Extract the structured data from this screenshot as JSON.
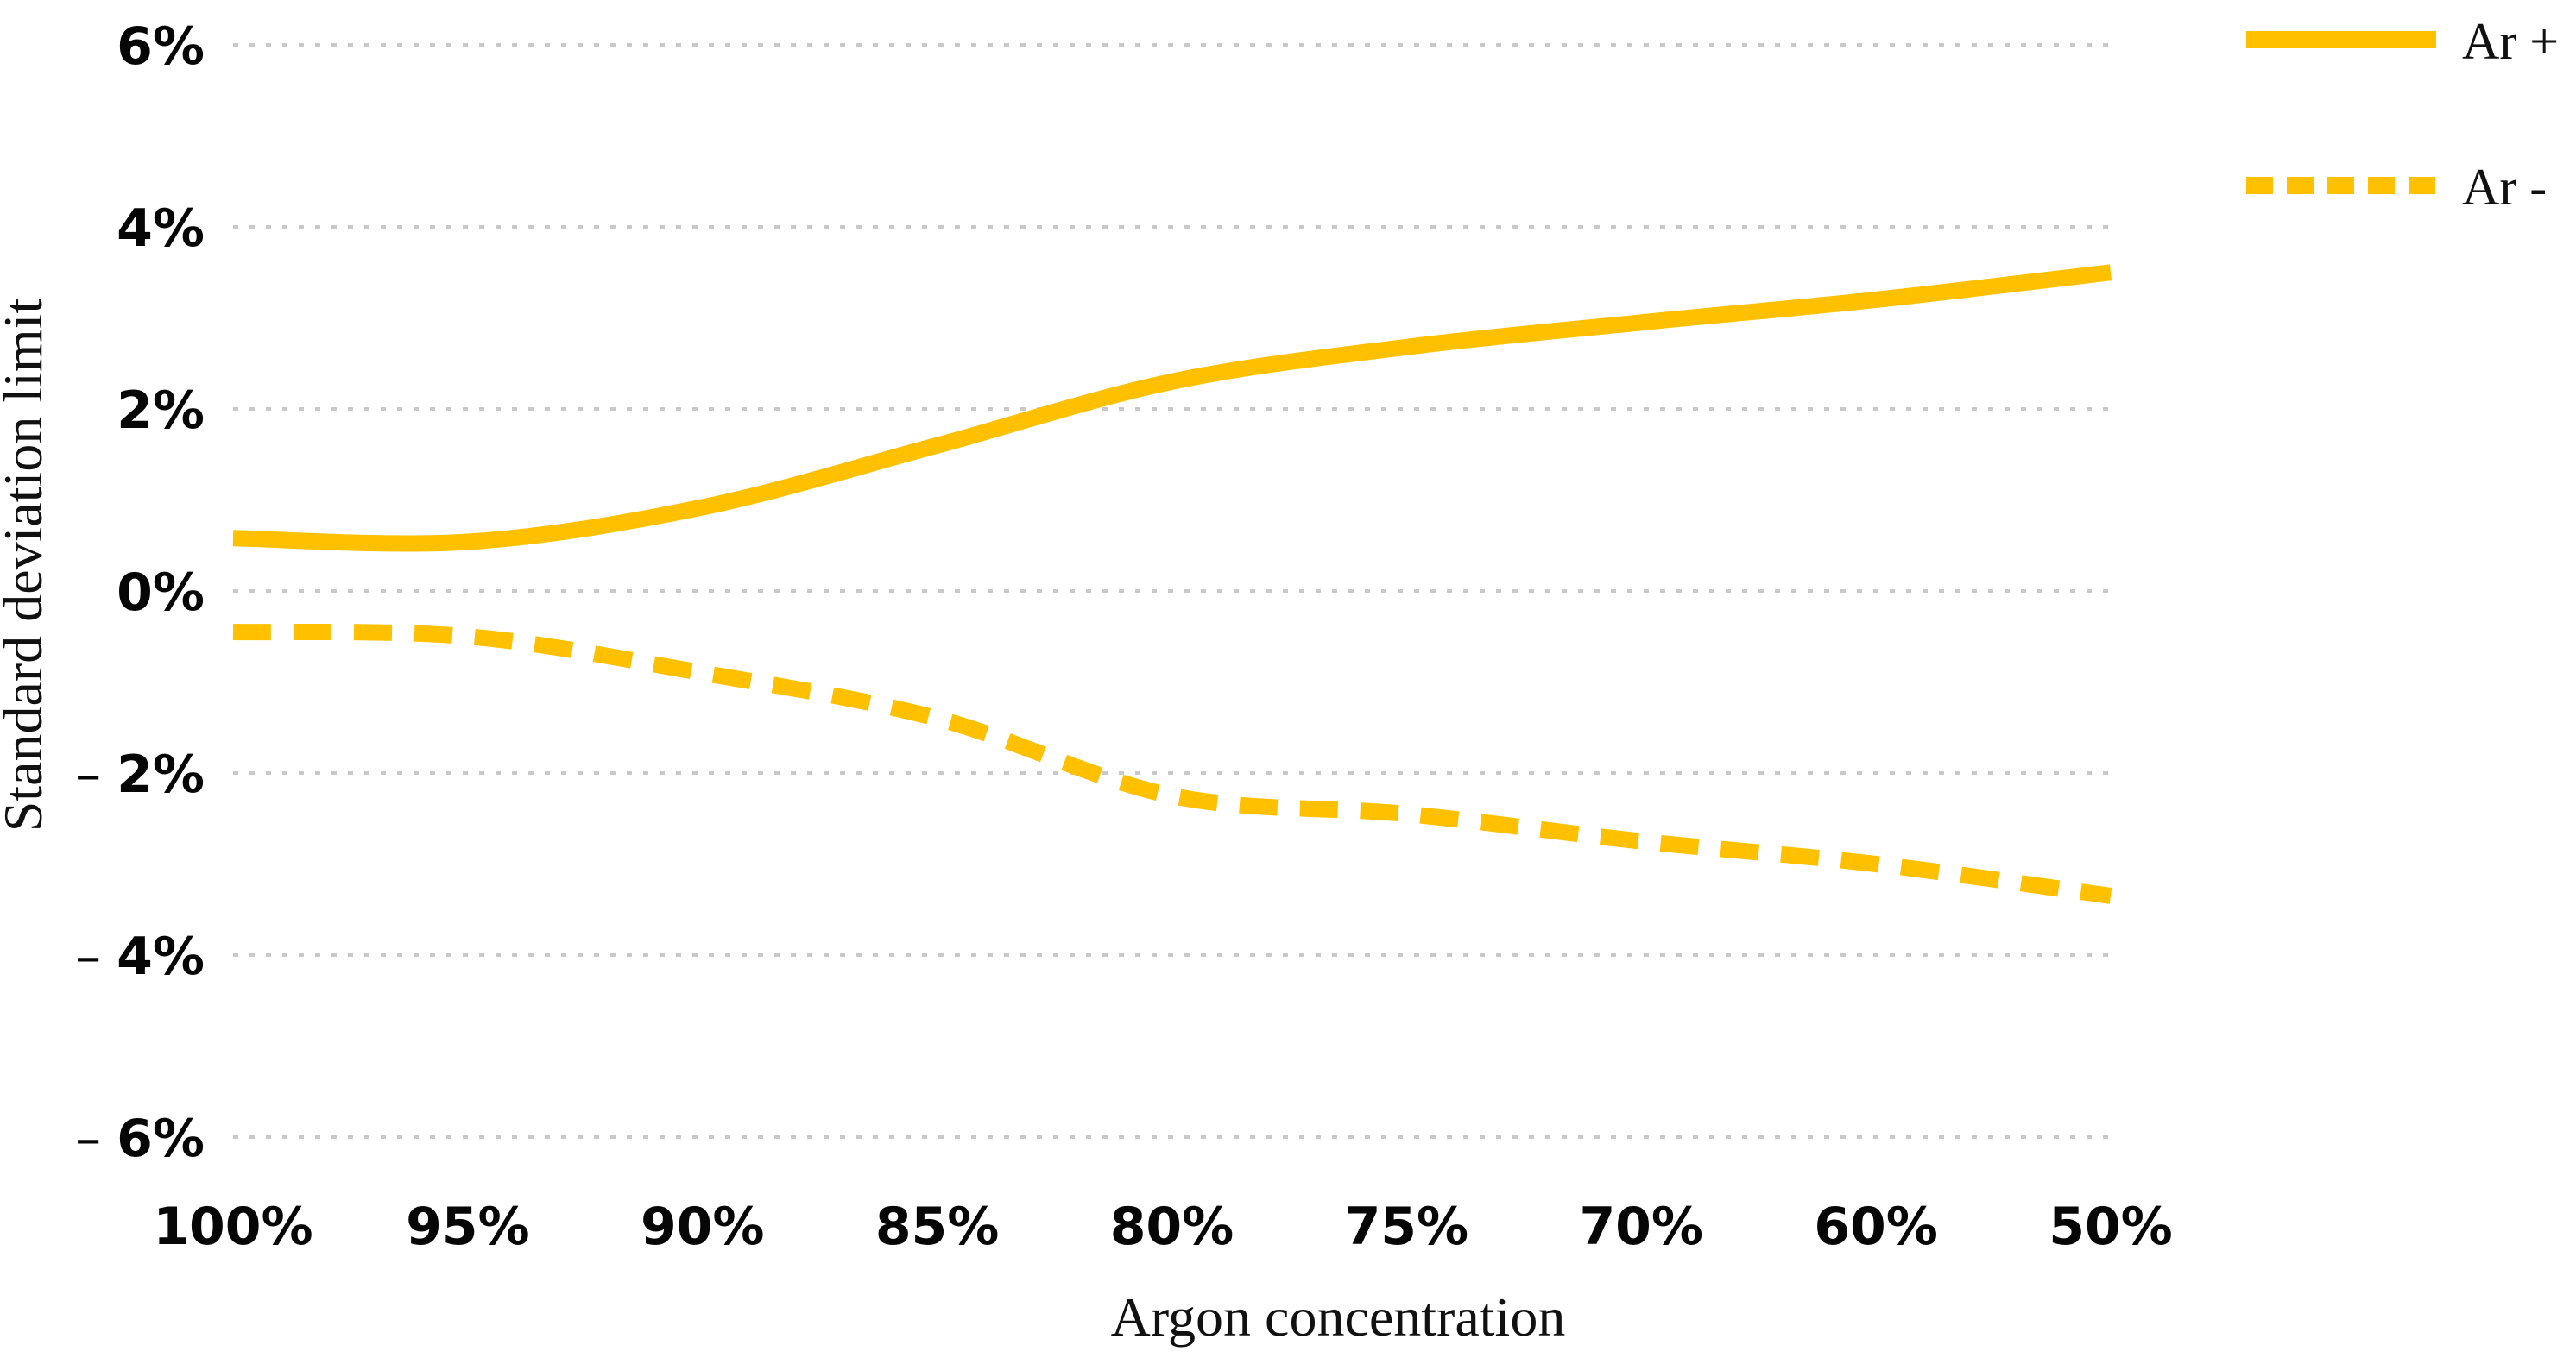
{
  "chart_data": {
    "type": "line",
    "smooth": true,
    "categories": [
      "100%",
      "95%",
      "90%",
      "85%",
      "80%",
      "75%",
      "70%",
      "60%",
      "50%"
    ],
    "series": [
      {
        "name": "Ar +",
        "line_style": "solid",
        "color": "#FFC000",
        "values": [
          0.58,
          0.54,
          0.92,
          1.6,
          2.3,
          2.68,
          2.95,
          3.2,
          3.5
        ]
      },
      {
        "name": "Ar -",
        "line_style": "dashed",
        "color": "#FFC000",
        "values": [
          -0.45,
          -0.5,
          -0.9,
          -1.4,
          -2.25,
          -2.45,
          -2.75,
          -3.0,
          -3.35
        ]
      }
    ],
    "title": "",
    "xlabel": "Argon concentration",
    "ylabel": "Standard deviation limit",
    "ylim": [
      -6,
      6
    ],
    "y_ticks": [
      {
        "v": 6,
        "sign": "",
        "label": "6%"
      },
      {
        "v": 4,
        "sign": "",
        "label": "4%"
      },
      {
        "v": 2,
        "sign": "",
        "label": "2%"
      },
      {
        "v": 0,
        "sign": "",
        "label": "0%"
      },
      {
        "v": -2,
        "sign": "–",
        "label": "2%"
      },
      {
        "v": -4,
        "sign": "–",
        "label": "4%"
      },
      {
        "v": -6,
        "sign": "–",
        "label": "6%"
      }
    ],
    "grid": "horizontal-dotted",
    "legend_position": "top-right",
    "legend_entries": [
      "Ar +",
      "Ar -"
    ]
  },
  "style": {
    "line_color": "#FFC000",
    "grid_color": "#c9c9c9",
    "text_color": "#060606",
    "background": "#ffffff"
  }
}
